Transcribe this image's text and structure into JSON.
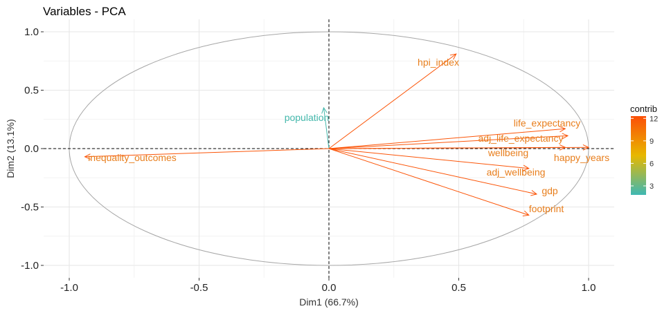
{
  "chart_data": {
    "type": "scatter",
    "subtype": "pca-variable-correlation-circle",
    "title": "Variables - PCA",
    "xlabel": "Dim1 (66.7%)",
    "ylabel": "Dim2 (13.1%)",
    "xlim": [
      -1.1,
      1.1
    ],
    "ylim": [
      -1.1,
      1.1
    ],
    "xticks": [
      -1.0,
      -0.5,
      0.0,
      0.5,
      1.0
    ],
    "xtick_labels": [
      "-1.0",
      "-0.5",
      "0.0",
      "0.5",
      "1.0"
    ],
    "yticks": [
      -1.0,
      -0.5,
      0.0,
      0.5,
      1.0
    ],
    "ytick_labels": [
      "-1.0",
      "-0.5",
      "0.0",
      "0.5",
      "1.0"
    ],
    "grid": true,
    "unit_circle": true,
    "variables": [
      {
        "name": "hpi_index",
        "x": 0.49,
        "y": 0.81,
        "contrib": 12
      },
      {
        "name": "population",
        "x": -0.02,
        "y": 0.35,
        "contrib": 2
      },
      {
        "name": "life_expectancy",
        "x": 0.91,
        "y": 0.17,
        "contrib": 12
      },
      {
        "name": "adj_life_expectancy",
        "x": 0.92,
        "y": 0.11,
        "contrib": 12
      },
      {
        "name": "wellbeing",
        "x": 0.91,
        "y": 0.01,
        "contrib": 12
      },
      {
        "name": "happy_years",
        "x": 1.0,
        "y": 0.01,
        "contrib": 12
      },
      {
        "name": "adj_wellbeing",
        "x": 0.77,
        "y": -0.17,
        "contrib": 12
      },
      {
        "name": "gdp",
        "x": 0.8,
        "y": -0.39,
        "contrib": 12
      },
      {
        "name": "footprint",
        "x": 0.77,
        "y": -0.57,
        "contrib": 12
      },
      {
        "name": "inequality_outcomes",
        "x": -0.94,
        "y": -0.07,
        "contrib": 12
      }
    ],
    "legend": {
      "title": "contrib",
      "placement": "right",
      "range": [
        1.8,
        12.3
      ],
      "ticks": [
        3,
        6,
        9,
        12
      ],
      "tick_labels": [
        "3",
        "6",
        "9",
        "12"
      ],
      "gradient_colors": [
        "#3EB8B3",
        "#E7B800",
        "#FC4E07"
      ]
    }
  }
}
